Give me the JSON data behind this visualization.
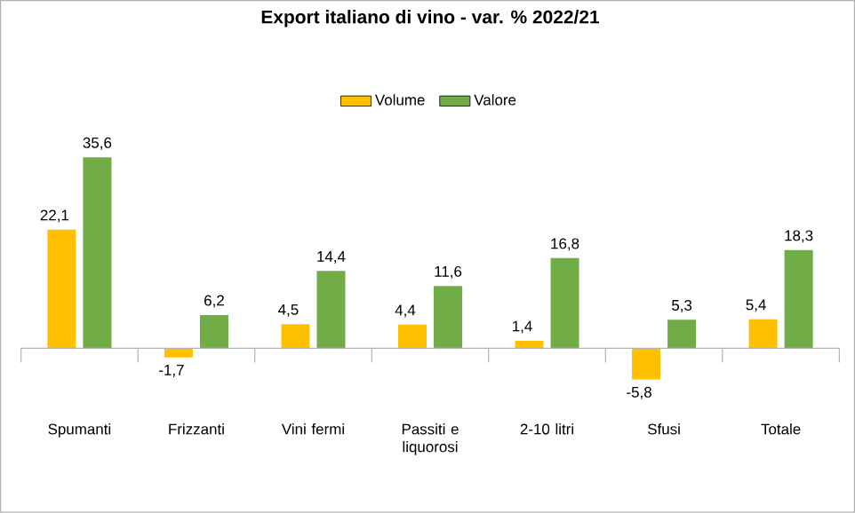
{
  "chart_data": {
    "type": "bar",
    "title": "Export italiano di vino - var. %  2022/21",
    "categories": [
      "Spumanti",
      "Frizzanti",
      "Vini fermi",
      "Passiti e liquorosi",
      "2-10 litri",
      "Sfusi",
      "Totale"
    ],
    "series": [
      {
        "name": "Volume",
        "color": "#ffc000",
        "values": [
          22.1,
          -1.7,
          4.5,
          4.4,
          1.4,
          -5.8,
          5.4
        ],
        "value_labels": [
          "22,1",
          "-1,7",
          "4,5",
          "4,4",
          "1,4",
          "-5,8",
          "5,4"
        ]
      },
      {
        "name": "Valore",
        "color": "#70ad47",
        "values": [
          35.6,
          6.2,
          14.4,
          11.6,
          16.8,
          5.3,
          18.3
        ],
        "value_labels": [
          "35,6",
          "6,2",
          "14,4",
          "11,6",
          "16,8",
          "5,3",
          "18,3"
        ]
      }
    ],
    "legend": "top"
  }
}
